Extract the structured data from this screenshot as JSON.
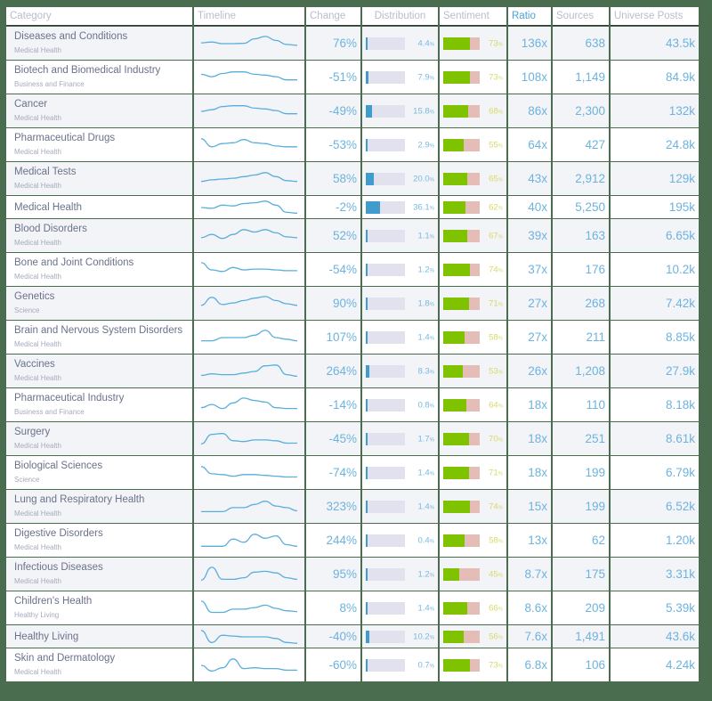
{
  "columns": {
    "category": "Category",
    "timeline": "Timeline",
    "change": "Change",
    "distribution": "Distribution",
    "sentiment": "Sentiment",
    "ratio": "Ratio",
    "sources": "Sources",
    "universe_posts": "Universe Posts"
  },
  "colors": {
    "background": "#4b6d4f",
    "accent_blue": "#6db3de",
    "distribution_fill": "#3f9ccd",
    "distribution_track": "#e1e2ee",
    "sentiment_positive": "#7fc300",
    "sentiment_negative": "#e4bdb7",
    "sentiment_text": "#d9d96a",
    "ratio_header": "#4aa3d6"
  },
  "rows": [
    {
      "name": "Diseases and Conditions",
      "sub": "Medical Health",
      "change": "76%",
      "dist": 4.4,
      "dist_label": "4.4",
      "sent": 73,
      "sent_label": "73",
      "ratio": "136x",
      "sources": "638",
      "posts": "43.5k",
      "spark": [
        0.45,
        0.4,
        0.5,
        0.5,
        0.48,
        0.2,
        0.05,
        0.3,
        0.55,
        0.6
      ]
    },
    {
      "name": "Biotech and Biomedical Industry",
      "sub": "Business and Finance",
      "change": "-51%",
      "dist": 7.9,
      "dist_label": "7.9",
      "sent": 73,
      "sent_label": "73",
      "ratio": "108x",
      "sources": "1,149",
      "posts": "84.9k",
      "spark": [
        0.3,
        0.45,
        0.25,
        0.15,
        0.15,
        0.3,
        0.35,
        0.45,
        0.65,
        0.65
      ]
    },
    {
      "name": "Cancer",
      "sub": "Medical Health",
      "change": "-49%",
      "dist": 15.8,
      "dist_label": "15.8",
      "sent": 68,
      "sent_label": "68",
      "ratio": "86x",
      "sources": "2,300",
      "posts": "132k",
      "spark": [
        0.5,
        0.4,
        0.2,
        0.15,
        0.15,
        0.3,
        0.35,
        0.45,
        0.65,
        0.65
      ]
    },
    {
      "name": "Pharmaceutical Drugs",
      "sub": "Medical Health",
      "change": "-53%",
      "dist": 2.9,
      "dist_label": "2.9",
      "sent": 55,
      "sent_label": "55",
      "ratio": "64x",
      "sources": "427",
      "posts": "24.8k",
      "spark": [
        0.1,
        0.6,
        0.4,
        0.35,
        0.15,
        0.35,
        0.4,
        0.55,
        0.6,
        0.6
      ]
    },
    {
      "name": "Medical Tests",
      "sub": "Medical Health",
      "change": "58%",
      "dist": 20.0,
      "dist_label": "20.0",
      "sent": 65,
      "sent_label": "65",
      "ratio": "43x",
      "sources": "2,912",
      "posts": "129k",
      "spark": [
        0.65,
        0.55,
        0.5,
        0.45,
        0.35,
        0.25,
        0.1,
        0.35,
        0.6,
        0.65
      ]
    },
    {
      "name": "Medical Health",
      "sub": "",
      "change": "-2%",
      "dist": 36.1,
      "dist_label": "36.1",
      "sent": 62,
      "sent_label": "62",
      "ratio": "40x",
      "sources": "5,250",
      "posts": "195k",
      "spark": [
        0.5,
        0.55,
        0.35,
        0.4,
        0.25,
        0.2,
        0.1,
        0.35,
        0.8,
        0.85
      ]
    },
    {
      "name": "Blood Disorders",
      "sub": "Medical Health",
      "change": "52%",
      "dist": 1.1,
      "dist_label": "1.1",
      "sent": 67,
      "sent_label": "67",
      "ratio": "39x",
      "sources": "163",
      "posts": "6.65k",
      "spark": [
        0.6,
        0.4,
        0.65,
        0.4,
        0.1,
        0.25,
        0.1,
        0.3,
        0.55,
        0.6
      ]
    },
    {
      "name": "Bone and Joint Conditions",
      "sub": "Medical Health",
      "change": "-54%",
      "dist": 1.2,
      "dist_label": "1.2",
      "sent": 74,
      "sent_label": "74",
      "ratio": "37x",
      "sources": "176",
      "posts": "10.2k",
      "spark": [
        0.05,
        0.5,
        0.6,
        0.35,
        0.5,
        0.45,
        0.45,
        0.5,
        0.55,
        0.55
      ]
    },
    {
      "name": "Genetics",
      "sub": "Science",
      "change": "90%",
      "dist": 1.8,
      "dist_label": "1.8",
      "sent": 71,
      "sent_label": "71",
      "ratio": "27x",
      "sources": "268",
      "posts": "7.42k",
      "spark": [
        0.6,
        0.1,
        0.55,
        0.45,
        0.3,
        0.15,
        0.05,
        0.3,
        0.5,
        0.6
      ]
    },
    {
      "name": "Brain and Nervous System Disorders",
      "sub": "Medical Health",
      "change": "107%",
      "dist": 1.4,
      "dist_label": "1.4",
      "sent": 58,
      "sent_label": "58",
      "ratio": "27x",
      "sources": "211",
      "posts": "8.85k",
      "spark": [
        0.7,
        0.7,
        0.5,
        0.5,
        0.5,
        0.35,
        0.05,
        0.5,
        0.6,
        0.7
      ]
    },
    {
      "name": "Vaccines",
      "sub": "Medical Health",
      "change": "264%",
      "dist": 8.3,
      "dist_label": "8.3",
      "sent": 53,
      "sent_label": "53",
      "ratio": "26x",
      "sources": "1,208",
      "posts": "27.9k",
      "spark": [
        0.75,
        0.65,
        0.7,
        0.7,
        0.6,
        0.5,
        0.15,
        0.1,
        0.7,
        0.8
      ]
    },
    {
      "name": "Pharmaceutical Industry",
      "sub": "Business and Finance",
      "change": "-14%",
      "dist": 0.8,
      "dist_label": "0.8",
      "sent": 64,
      "sent_label": "64",
      "ratio": "18x",
      "sources": "110",
      "posts": "8.18k",
      "spark": [
        0.65,
        0.45,
        0.7,
        0.35,
        0.05,
        0.2,
        0.3,
        0.65,
        0.7,
        0.7
      ]
    },
    {
      "name": "Surgery",
      "sub": "Medical Health",
      "change": "-45%",
      "dist": 1.7,
      "dist_label": "1.7",
      "sent": 70,
      "sent_label": "70",
      "ratio": "18x",
      "sources": "251",
      "posts": "8.61k",
      "spark": [
        0.8,
        0.2,
        0.15,
        0.6,
        0.65,
        0.55,
        0.55,
        0.6,
        0.75,
        0.75
      ]
    },
    {
      "name": "Biological Sciences",
      "sub": "Science",
      "change": "-74%",
      "dist": 1.4,
      "dist_label": "1.4",
      "sent": 71,
      "sent_label": "71",
      "ratio": "18x",
      "sources": "199",
      "posts": "6.79k",
      "spark": [
        0.1,
        0.55,
        0.6,
        0.7,
        0.6,
        0.6,
        0.65,
        0.7,
        0.75,
        0.75
      ]
    },
    {
      "name": "Lung and Respiratory Health",
      "sub": "Medical Health",
      "change": "323%",
      "dist": 1.4,
      "dist_label": "1.4",
      "sent": 74,
      "sent_label": "74",
      "ratio": "15x",
      "sources": "199",
      "posts": "6.52k",
      "spark": [
        0.8,
        0.8,
        0.8,
        0.55,
        0.55,
        0.35,
        0.15,
        0.45,
        0.55,
        0.75
      ]
    },
    {
      "name": "Digestive Disorders",
      "sub": "Medical Health",
      "change": "244%",
      "dist": 0.4,
      "dist_label": "0.4",
      "sent": 58,
      "sent_label": "58",
      "ratio": "13x",
      "sources": "62",
      "posts": "1.20k",
      "spark": [
        0.85,
        0.85,
        0.85,
        0.4,
        0.6,
        0.1,
        0.35,
        0.2,
        0.75,
        0.85
      ]
    },
    {
      "name": "Infectious Diseases",
      "sub": "Medical Health",
      "change": "95%",
      "dist": 1.2,
      "dist_label": "1.2",
      "sent": 45,
      "sent_label": "45",
      "ratio": "8.7x",
      "sources": "175",
      "posts": "3.31k",
      "spark": [
        0.85,
        0.05,
        0.8,
        0.8,
        0.7,
        0.35,
        0.3,
        0.4,
        0.7,
        0.8
      ]
    },
    {
      "name": "Children's Health",
      "sub": "Healthy Living",
      "change": "8%",
      "dist": 1.4,
      "dist_label": "1.4",
      "sent": 66,
      "sent_label": "66",
      "ratio": "8.6x",
      "sources": "209",
      "posts": "5.39k",
      "spark": [
        0.05,
        0.75,
        0.75,
        0.55,
        0.55,
        0.45,
        0.3,
        0.5,
        0.65,
        0.7
      ]
    },
    {
      "name": "Healthy Living",
      "sub": "",
      "change": "-40%",
      "dist": 10.2,
      "dist_label": "10.2",
      "sent": 56,
      "sent_label": "56",
      "ratio": "7.6x",
      "sources": "1,491",
      "posts": "43.6k",
      "spark": [
        0.1,
        0.85,
        0.4,
        0.45,
        0.5,
        0.5,
        0.5,
        0.6,
        0.85,
        0.9
      ]
    },
    {
      "name": "Skin and Dermatology",
      "sub": "Medical Health",
      "change": "-60%",
      "dist": 0.7,
      "dist_label": "0.7",
      "sent": 73,
      "sent_label": "73",
      "ratio": "6.8x",
      "sources": "106",
      "posts": "4.24k",
      "spark": [
        0.5,
        0.85,
        0.65,
        0.1,
        0.7,
        0.65,
        0.7,
        0.7,
        0.8,
        0.8
      ]
    }
  ]
}
